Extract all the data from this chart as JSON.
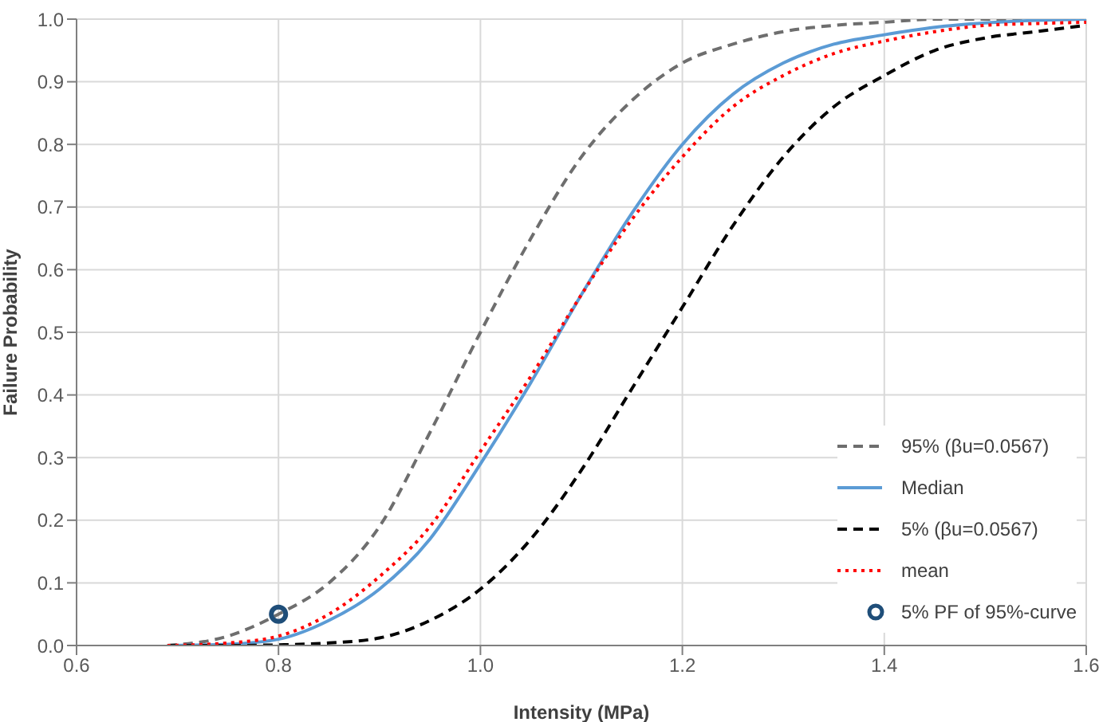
{
  "chart_data": {
    "type": "line",
    "xlabel": "Intensity (MPa)",
    "ylabel": "Failure Probability",
    "x": [
      0.69,
      0.75,
      0.8,
      0.85,
      0.9,
      0.95,
      1.0,
      1.05,
      1.1,
      1.15,
      1.2,
      1.25,
      1.3,
      1.35,
      1.4,
      1.45,
      1.5,
      1.55,
      1.6
    ],
    "series": [
      {
        "name": "95% (βu=0.0567)",
        "color": "#6e6e6e",
        "line_style": "dashed",
        "values": [
          0,
          0.015,
          0.05,
          0.1,
          0.19,
          0.34,
          0.5,
          0.65,
          0.78,
          0.87,
          0.93,
          0.96,
          0.98,
          0.99,
          0.995,
          1,
          1,
          1,
          1
        ]
      },
      {
        "name": "Median",
        "color": "#5b9bd5",
        "line_style": "solid",
        "values": [
          0,
          0.002,
          0.01,
          0.04,
          0.09,
          0.17,
          0.29,
          0.42,
          0.56,
          0.69,
          0.8,
          0.88,
          0.93,
          0.96,
          0.975,
          0.987,
          0.994,
          0.998,
          1
        ]
      },
      {
        "name": "5% (βu=0.0567)",
        "color": "#000000",
        "line_style": "dashed",
        "values": [
          0,
          0,
          0.001,
          0.004,
          0.012,
          0.04,
          0.09,
          0.17,
          0.28,
          0.41,
          0.54,
          0.67,
          0.78,
          0.86,
          0.91,
          0.95,
          0.97,
          0.98,
          0.99
        ]
      },
      {
        "name": "mean",
        "color": "#ff0000",
        "line_style": "dotted",
        "values": [
          0,
          0.004,
          0.015,
          0.05,
          0.11,
          0.19,
          0.31,
          0.43,
          0.56,
          0.68,
          0.78,
          0.86,
          0.91,
          0.945,
          0.965,
          0.98,
          0.99,
          0.993,
          0.995
        ]
      },
      {
        "name": "5% PF of 95%-curve",
        "type": "scatter",
        "marker": "circle",
        "color": "#1f4e79",
        "x": [
          0.8
        ],
        "values": [
          0.05
        ]
      }
    ],
    "xlim": [
      0.6,
      1.6
    ],
    "xticks": [
      {
        "value": 0.6,
        "label": "0.6"
      },
      {
        "value": 0.8,
        "label": "0.8"
      },
      {
        "value": 1.0,
        "label": "1.0"
      },
      {
        "value": 1.2,
        "label": "1.2"
      },
      {
        "value": 1.4,
        "label": "1.4"
      },
      {
        "value": 1.6,
        "label": "1.6"
      }
    ],
    "ylim": [
      0,
      1
    ],
    "yticks": [
      {
        "value": 0,
        "label": "0.0"
      },
      {
        "value": 0.1,
        "label": "0.1"
      },
      {
        "value": 0.2,
        "label": "0.2"
      },
      {
        "value": 0.3,
        "label": "0.3"
      },
      {
        "value": 0.4,
        "label": "0.4"
      },
      {
        "value": 0.5,
        "label": "0.5"
      },
      {
        "value": 0.6,
        "label": "0.6"
      },
      {
        "value": 0.7,
        "label": "0.7"
      },
      {
        "value": 0.8,
        "label": "0.8"
      },
      {
        "value": 0.9,
        "label": "0.9"
      },
      {
        "value": 1,
        "label": "1.0"
      }
    ],
    "grid": true,
    "legend": "bottom right",
    "marker": "none"
  }
}
